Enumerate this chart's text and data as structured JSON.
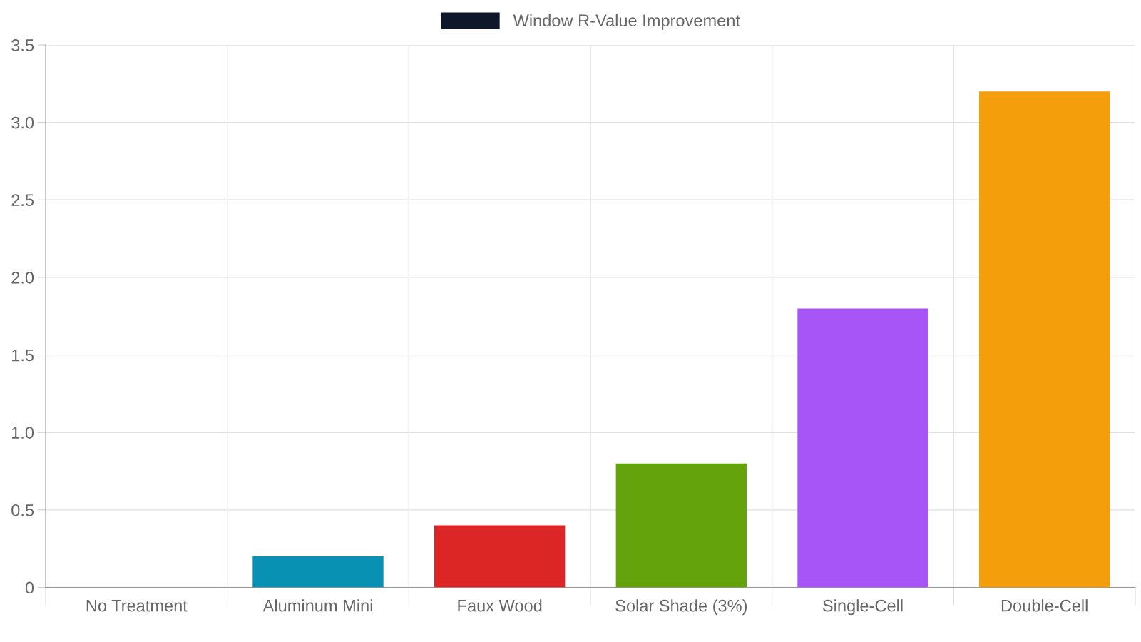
{
  "chart_data": {
    "type": "bar",
    "categories": [
      "No Treatment",
      "Aluminum Mini",
      "Faux Wood",
      "Solar Shade (3%)",
      "Single-Cell",
      "Double-Cell"
    ],
    "series": [
      {
        "name": "Window R-Value Improvement",
        "color": "#0f172a",
        "colors": [
          "#0f172a",
          "#0891b2",
          "#dc2626",
          "#65a30d",
          "#a855f7",
          "#f59e0b"
        ],
        "values": [
          0,
          0.2,
          0.4,
          0.8,
          1.8,
          3.2
        ]
      }
    ],
    "ylim": [
      0,
      3.5
    ],
    "yticks": [
      0,
      0.5,
      {
        "value": 1,
        "label": "1.0"
      },
      1.5,
      {
        "value": 2,
        "label": "2.0"
      },
      2.5,
      {
        "value": 3,
        "label": "3.0"
      },
      3.5
    ],
    "grid": true,
    "legend": "top"
  }
}
